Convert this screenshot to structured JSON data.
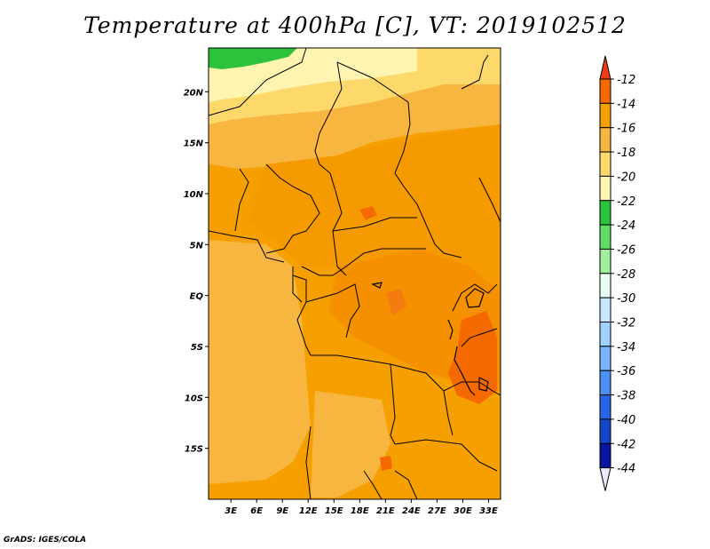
{
  "title": "Temperature at 400hPa [C], VT: 2019102512",
  "credit": "GrADS: IGES/COLA",
  "lat_ticks": [
    {
      "value": 20,
      "label": "20N"
    },
    {
      "value": 15,
      "label": "15N"
    },
    {
      "value": 10,
      "label": "10N"
    },
    {
      "value": 5,
      "label": "5N"
    },
    {
      "value": 0,
      "label": "EQ"
    },
    {
      "value": -5,
      "label": "5S"
    },
    {
      "value": -10,
      "label": "10S"
    },
    {
      "value": -15,
      "label": "15S"
    }
  ],
  "lon_ticks": [
    {
      "value": 3,
      "label": "3E"
    },
    {
      "value": 6,
      "label": "6E"
    },
    {
      "value": 9,
      "label": "9E"
    },
    {
      "value": 12,
      "label": "12E"
    },
    {
      "value": 15,
      "label": "15E"
    },
    {
      "value": 18,
      "label": "18E"
    },
    {
      "value": 21,
      "label": "21E"
    },
    {
      "value": 24,
      "label": "24E"
    },
    {
      "value": 27,
      "label": "27E"
    },
    {
      "value": 30,
      "label": "30E"
    },
    {
      "value": 33,
      "label": "33E"
    }
  ],
  "colorbar": {
    "levels": [
      -12,
      -14,
      -16,
      -18,
      -20,
      -22,
      -24,
      -26,
      -28,
      -30,
      -32,
      -34,
      -36,
      -38,
      -40,
      -42,
      -44
    ],
    "colors": [
      "#f03c14",
      "#f56a00",
      "#f5a000",
      "#f7b640",
      "#fcd96a",
      "#fff5b0",
      "#2dc23c",
      "#5fdc64",
      "#a0f0a0",
      "#e6fff0",
      "#c8e6ff",
      "#a0d2ff",
      "#78b4ff",
      "#4b91f5",
      "#2864e6",
      "#1446c8",
      "#0a14a0",
      "#1e006e"
    ]
  }
}
